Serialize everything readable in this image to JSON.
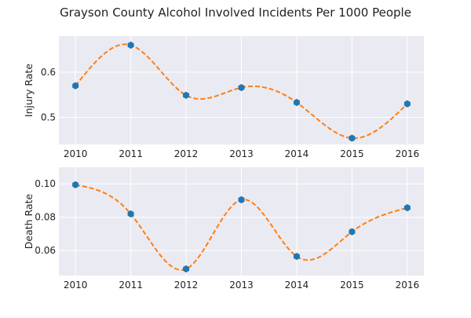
{
  "title": "Grayson County Alcohol Involved Incidents Per 1000 People",
  "colors": {
    "background": "#eaeaf2",
    "grid": "#ffffff",
    "marker": "#1f77b4",
    "curve": "#ff7f0e"
  },
  "chart_data": [
    {
      "type": "line",
      "title": "",
      "xlabel": "",
      "ylabel": "Injury Rate",
      "x": [
        2010,
        2011,
        2012,
        2013,
        2014,
        2015,
        2016
      ],
      "y": [
        0.57,
        0.66,
        0.549,
        0.566,
        0.533,
        0.454,
        0.53
      ],
      "xlim": [
        2009.7,
        2016.3
      ],
      "ylim": [
        0.44,
        0.68
      ],
      "yticks": [
        0.5,
        0.6
      ],
      "ytick_labels": [
        "0.5",
        "0.6"
      ],
      "xtick_labels": [
        "2010",
        "2011",
        "2012",
        "2013",
        "2014",
        "2015",
        "2016"
      ],
      "grid": true,
      "legend": "none"
    },
    {
      "type": "line",
      "title": "",
      "xlabel": "",
      "ylabel": "Death Rate",
      "x": [
        2010,
        2011,
        2012,
        2013,
        2014,
        2015,
        2016
      ],
      "y": [
        0.0995,
        0.082,
        0.049,
        0.0905,
        0.0565,
        0.0713,
        0.0857
      ],
      "xlim": [
        2009.7,
        2016.3
      ],
      "ylim": [
        0.045,
        0.11
      ],
      "yticks": [
        0.06,
        0.08,
        0.1
      ],
      "ytick_labels": [
        "0.06",
        "0.08",
        "0.10"
      ],
      "xtick_labels": [
        "2010",
        "2011",
        "2012",
        "2013",
        "2014",
        "2015",
        "2016"
      ],
      "grid": true,
      "legend": "none"
    }
  ]
}
